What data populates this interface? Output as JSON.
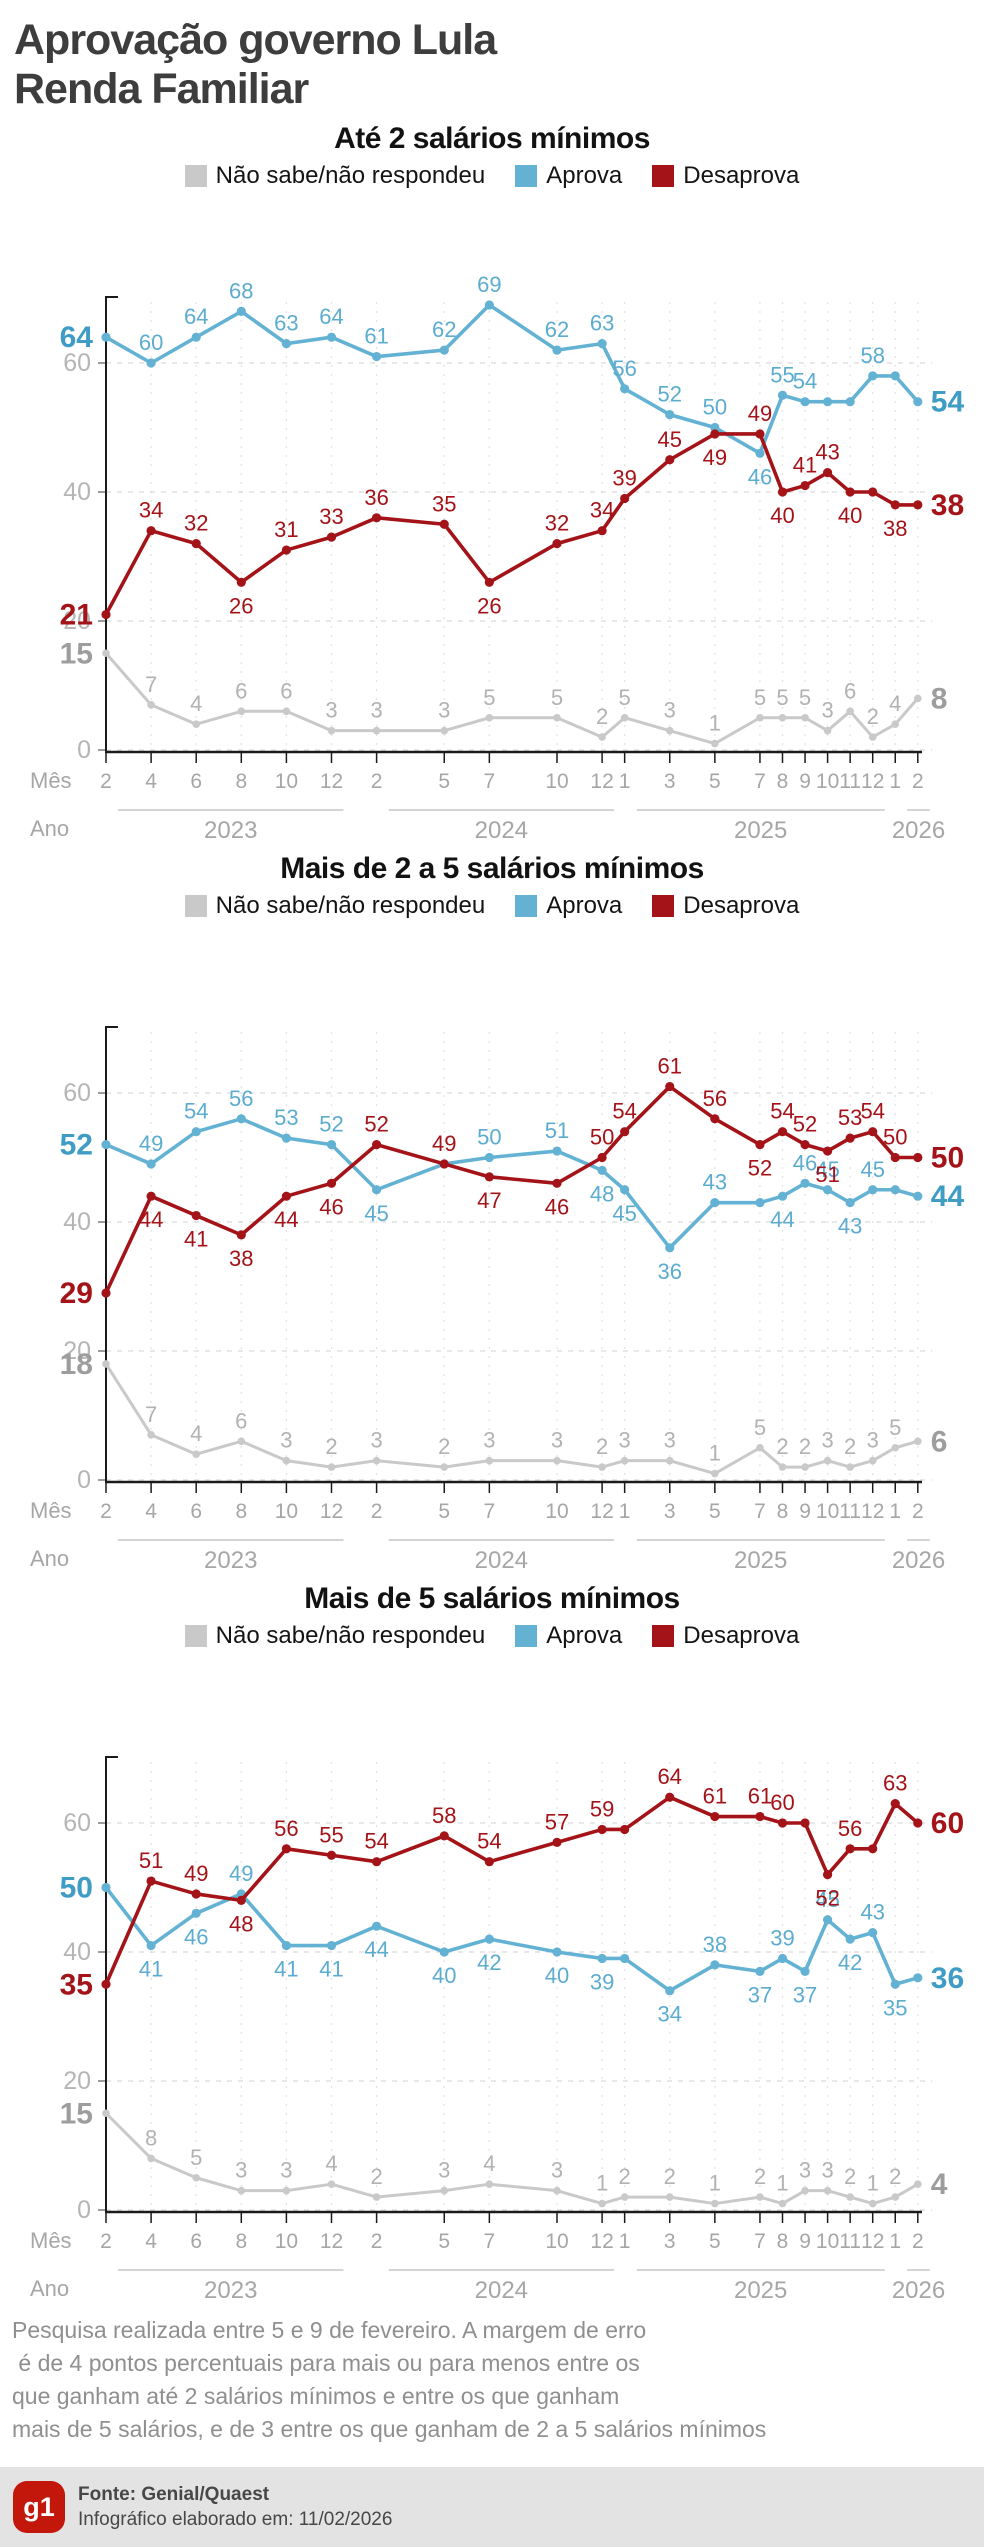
{
  "header": {
    "title_line1": "Aprovação governo Lula",
    "title_line2": "Renda Familiar"
  },
  "legend": [
    {
      "id": "nao-sabe",
      "label": "Não sabe/não respondeu",
      "color": "#c9c9c9"
    },
    {
      "id": "aprova",
      "label": "Aprova",
      "color": "#63b2d3"
    },
    {
      "id": "desaprova",
      "label": "Desaprova",
      "color": "#a31318"
    }
  ],
  "axis": {
    "mes_label": "Mês",
    "ano_label": "Ano"
  },
  "chart_data": [
    {
      "type": "line",
      "title": "Até 2 salários mínimos",
      "ylim": [
        0,
        70
      ],
      "y_ticks": [
        0,
        20,
        40,
        60
      ],
      "grid": true,
      "months": [
        "2",
        "4",
        "6",
        "8",
        "10",
        "12",
        "2",
        "5",
        "7",
        "10",
        "12",
        "1",
        "3",
        "5",
        "7",
        "8",
        "9",
        "10",
        "11",
        "12",
        "1",
        "2"
      ],
      "month_t": [
        0,
        2,
        4,
        6,
        8,
        10,
        12,
        15,
        17,
        20,
        22,
        23,
        25,
        27,
        29,
        30,
        31,
        32,
        33,
        34,
        35,
        36
      ],
      "years": [
        {
          "label": "2023",
          "t0": 0,
          "t1": 10
        },
        {
          "label": "2024",
          "t0": 12,
          "t1": 22
        },
        {
          "label": "2025",
          "t0": 23,
          "t1": 34
        },
        {
          "label": "2026",
          "t0": 35,
          "t1": 36
        }
      ],
      "series": [
        {
          "id": "nao-sabe",
          "name": "Não sabe/não respondeu",
          "color": "#c9c9c9",
          "label_color": "#b2b2b2",
          "bold_color": "#9d9d9d",
          "width": 3,
          "dot": 3.8,
          "values": [
            15,
            7,
            4,
            6,
            6,
            3,
            3,
            3,
            5,
            5,
            2,
            5,
            3,
            1,
            5,
            5,
            5,
            3,
            6,
            2,
            4,
            8
          ],
          "labels": [
            "15",
            "7",
            "4",
            "6",
            "6",
            "3",
            "3",
            "3",
            "5",
            "5",
            "2",
            "5",
            "3",
            "1",
            "5",
            "5",
            "5",
            "3",
            "6",
            "2",
            "4",
            "8"
          ],
          "pos": [
            "a",
            "a",
            "a",
            "a",
            "a",
            "a",
            "a",
            "a",
            "a",
            "a",
            "a",
            "a",
            "a",
            "a",
            "a",
            "a",
            "a",
            "a",
            "a",
            "a",
            "a",
            "a"
          ]
        },
        {
          "id": "aprova",
          "name": "Aprova",
          "color": "#63b2d3",
          "label_color": "#5cacd0",
          "bold_color": "#3f9cc5",
          "width": 3.6,
          "dot": 4.6,
          "values": [
            64,
            60,
            64,
            68,
            63,
            64,
            61,
            62,
            69,
            62,
            63,
            56,
            52,
            50,
            46,
            55,
            54,
            54,
            54,
            58,
            58,
            54
          ],
          "labels": [
            "64",
            "60",
            "64",
            "68",
            "63",
            "64",
            "61",
            "62",
            "69",
            "62",
            "63",
            "56",
            "52",
            "50",
            "46",
            "55",
            "54",
            "",
            "",
            "58",
            "",
            "54"
          ],
          "pos": [
            "a",
            "a",
            "a",
            "a",
            "a",
            "a",
            "a",
            "a",
            "a",
            "a",
            "a",
            "a",
            "a",
            "a",
            "b",
            "a",
            "a",
            "a",
            "a",
            "a",
            "a",
            "a"
          ]
        },
        {
          "id": "desaprova",
          "name": "Desaprova",
          "color": "#a31318",
          "label_color": "#a31318",
          "bold_color": "#a31318",
          "width": 3.6,
          "dot": 4.6,
          "values": [
            21,
            34,
            32,
            26,
            31,
            33,
            36,
            35,
            26,
            32,
            34,
            39,
            45,
            49,
            49,
            40,
            41,
            43,
            40,
            40,
            38,
            38
          ],
          "labels": [
            "21",
            "34",
            "32",
            "26",
            "31",
            "33",
            "36",
            "35",
            "26",
            "32",
            "34",
            "39",
            "45",
            "49",
            "49",
            "40",
            "41",
            "43",
            "40",
            "",
            "38",
            "38"
          ],
          "pos": [
            "b",
            "a",
            "a",
            "b",
            "a",
            "a",
            "a",
            "a",
            "b",
            "a",
            "a",
            "a",
            "a",
            "b",
            "a",
            "b",
            "a",
            "a",
            "b",
            "b",
            "b",
            "a"
          ]
        }
      ]
    },
    {
      "type": "line",
      "title": "Mais de 2 a 5 salários mínimos",
      "ylim": [
        0,
        70
      ],
      "y_ticks": [
        0,
        20,
        40,
        60
      ],
      "grid": true,
      "months": [
        "2",
        "4",
        "6",
        "8",
        "10",
        "12",
        "2",
        "5",
        "7",
        "10",
        "12",
        "1",
        "3",
        "5",
        "7",
        "8",
        "9",
        "10",
        "11",
        "12",
        "1",
        "2"
      ],
      "month_t": [
        0,
        2,
        4,
        6,
        8,
        10,
        12,
        15,
        17,
        20,
        22,
        23,
        25,
        27,
        29,
        30,
        31,
        32,
        33,
        34,
        35,
        36
      ],
      "years": [
        {
          "label": "2023",
          "t0": 0,
          "t1": 10
        },
        {
          "label": "2024",
          "t0": 12,
          "t1": 22
        },
        {
          "label": "2025",
          "t0": 23,
          "t1": 34
        },
        {
          "label": "2026",
          "t0": 35,
          "t1": 36
        }
      ],
      "series": [
        {
          "id": "nao-sabe",
          "name": "Não sabe/não respondeu",
          "color": "#c9c9c9",
          "label_color": "#b2b2b2",
          "bold_color": "#9d9d9d",
          "width": 3,
          "dot": 3.8,
          "values": [
            18,
            7,
            4,
            6,
            3,
            2,
            3,
            2,
            3,
            3,
            2,
            3,
            3,
            1,
            5,
            2,
            2,
            3,
            2,
            3,
            5,
            6
          ],
          "labels": [
            "18",
            "7",
            "4",
            "6",
            "3",
            "2",
            "3",
            "2",
            "3",
            "3",
            "2",
            "3",
            "3",
            "1",
            "5",
            "2",
            "2",
            "3",
            "2",
            "3",
            "5",
            "6"
          ],
          "pos": [
            "a",
            "a",
            "a",
            "a",
            "a",
            "a",
            "a",
            "a",
            "a",
            "a",
            "a",
            "a",
            "a",
            "a",
            "a",
            "a",
            "a",
            "a",
            "a",
            "a",
            "a",
            "a"
          ]
        },
        {
          "id": "aprova",
          "name": "Aprova",
          "color": "#63b2d3",
          "label_color": "#5cacd0",
          "bold_color": "#3f9cc5",
          "width": 3.6,
          "dot": 4.6,
          "values": [
            52,
            49,
            54,
            56,
            53,
            52,
            45,
            49,
            50,
            51,
            48,
            45,
            36,
            43,
            43,
            44,
            46,
            45,
            43,
            45,
            45,
            44
          ],
          "labels": [
            "52",
            "49",
            "54",
            "56",
            "53",
            "52",
            "45",
            "",
            "50",
            "51",
            "48",
            "45",
            "36",
            "43",
            "",
            "44",
            "46",
            "45",
            "43",
            "45",
            "",
            "44"
          ],
          "pos": [
            "a",
            "a",
            "a",
            "a",
            "a",
            "a",
            "b",
            "a",
            "a",
            "a",
            "b",
            "b",
            "b",
            "a",
            "a",
            "b",
            "a",
            "a",
            "b",
            "a",
            "a",
            "a"
          ]
        },
        {
          "id": "desaprova",
          "name": "Desaprova",
          "color": "#a31318",
          "label_color": "#a31318",
          "bold_color": "#a31318",
          "width": 3.6,
          "dot": 4.6,
          "values": [
            29,
            44,
            41,
            38,
            44,
            46,
            52,
            49,
            47,
            46,
            50,
            54,
            61,
            56,
            52,
            54,
            52,
            51,
            53,
            54,
            50,
            50
          ],
          "labels": [
            "29",
            "44",
            "41",
            "38",
            "44",
            "46",
            "52",
            "49",
            "47",
            "46",
            "50",
            "54",
            "61",
            "56",
            "52",
            "54",
            "52",
            "51",
            "53",
            "54",
            "50",
            "50"
          ],
          "pos": [
            "b",
            "b",
            "b",
            "b",
            "b",
            "b",
            "a",
            "a",
            "b",
            "b",
            "a",
            "a",
            "a",
            "a",
            "b",
            "a",
            "a",
            "b",
            "a",
            "a",
            "a",
            "a"
          ]
        }
      ]
    },
    {
      "type": "line",
      "title": "Mais de 5 salários mínimos",
      "ylim": [
        0,
        70
      ],
      "y_ticks": [
        0,
        20,
        40,
        60
      ],
      "grid": true,
      "months": [
        "2",
        "4",
        "6",
        "8",
        "10",
        "12",
        "2",
        "5",
        "7",
        "10",
        "12",
        "1",
        "3",
        "5",
        "7",
        "8",
        "9",
        "10",
        "11",
        "12",
        "1",
        "2"
      ],
      "month_t": [
        0,
        2,
        4,
        6,
        8,
        10,
        12,
        15,
        17,
        20,
        22,
        23,
        25,
        27,
        29,
        30,
        31,
        32,
        33,
        34,
        35,
        36
      ],
      "years": [
        {
          "label": "2023",
          "t0": 0,
          "t1": 10
        },
        {
          "label": "2024",
          "t0": 12,
          "t1": 22
        },
        {
          "label": "2025",
          "t0": 23,
          "t1": 34
        },
        {
          "label": "2026",
          "t0": 35,
          "t1": 36
        }
      ],
      "series": [
        {
          "id": "nao-sabe",
          "name": "Não sabe/não respondeu",
          "color": "#c9c9c9",
          "label_color": "#b2b2b2",
          "bold_color": "#9d9d9d",
          "width": 3,
          "dot": 3.8,
          "values": [
            15,
            8,
            5,
            3,
            3,
            4,
            2,
            3,
            4,
            3,
            1,
            2,
            2,
            1,
            2,
            1,
            3,
            3,
            2,
            1,
            2,
            4
          ],
          "labels": [
            "15",
            "8",
            "5",
            "3",
            "3",
            "4",
            "2",
            "3",
            "4",
            "3",
            "1",
            "2",
            "2",
            "1",
            "2",
            "1",
            "3",
            "3",
            "2",
            "1",
            "2",
            "4"
          ],
          "pos": [
            "a",
            "a",
            "a",
            "a",
            "a",
            "a",
            "a",
            "a",
            "a",
            "a",
            "a",
            "a",
            "a",
            "a",
            "a",
            "a",
            "a",
            "a",
            "a",
            "a",
            "a",
            "a"
          ]
        },
        {
          "id": "aprova",
          "name": "Aprova",
          "color": "#63b2d3",
          "label_color": "#5cacd0",
          "bold_color": "#3f9cc5",
          "width": 3.6,
          "dot": 4.6,
          "values": [
            50,
            41,
            46,
            49,
            41,
            41,
            44,
            40,
            42,
            40,
            39,
            39,
            34,
            38,
            37,
            39,
            37,
            45,
            42,
            43,
            35,
            36
          ],
          "labels": [
            "50",
            "41",
            "46",
            "49",
            "41",
            "41",
            "44",
            "40",
            "42",
            "40",
            "39",
            "",
            "34",
            "38",
            "37",
            "39",
            "37",
            "45",
            "42",
            "43",
            "35",
            "36"
          ],
          "pos": [
            "a",
            "b",
            "b",
            "a",
            "b",
            "b",
            "b",
            "b",
            "b",
            "b",
            "b",
            "b",
            "b",
            "a",
            "b",
            "a",
            "b",
            "a",
            "b",
            "a",
            "b",
            "a"
          ]
        },
        {
          "id": "desaprova",
          "name": "Desaprova",
          "color": "#a31318",
          "label_color": "#a31318",
          "bold_color": "#a31318",
          "width": 3.6,
          "dot": 4.6,
          "values": [
            35,
            51,
            49,
            48,
            56,
            55,
            54,
            58,
            54,
            57,
            59,
            59,
            64,
            61,
            61,
            60,
            60,
            52,
            56,
            56,
            63,
            60
          ],
          "labels": [
            "35",
            "51",
            "49",
            "48",
            "56",
            "55",
            "54",
            "58",
            "54",
            "57",
            "59",
            "",
            "64",
            "61",
            "61",
            "60",
            "",
            "52",
            "56",
            "",
            "63",
            "60"
          ],
          "pos": [
            "b",
            "a",
            "a",
            "b",
            "a",
            "a",
            "a",
            "a",
            "a",
            "a",
            "a",
            "a",
            "a",
            "a",
            "a",
            "a",
            "a",
            "b",
            "a",
            "a",
            "a",
            "a"
          ]
        }
      ]
    }
  ],
  "footer": {
    "lines": [
      "Pesquisa realizada entre 5 e 9 de fevereiro. A margem de erro",
      " é de 4 pontos percentuais para mais ou para menos entre os",
      "que ganham até 2 salários mínimos e entre os que ganham",
      "mais de 5 salários, e de 3 entre os que ganham de 2 a 5 salários mínimos"
    ]
  },
  "source": {
    "logo": "g1",
    "fonte": "Fonte: Genial/Quaest",
    "elaborado": "Infográfico elaborado em: 11/02/2026"
  }
}
